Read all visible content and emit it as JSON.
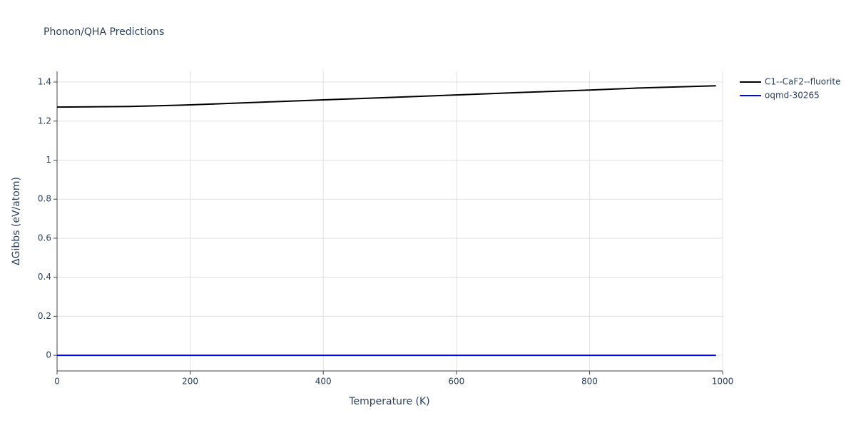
{
  "chart_data": {
    "type": "line",
    "title": "Phonon/QHA Predictions",
    "x_label": "Temperature (K)",
    "y_label": "ΔGibbs (eV/atom)",
    "x": [
      0,
      110,
      200,
      300,
      400,
      500,
      600,
      700,
      800,
      870,
      990
    ],
    "series": [
      {
        "name": "C1--CaF2--fluorite",
        "color": "#000000",
        "values": [
          1.272,
          1.275,
          1.283,
          1.296,
          1.309,
          1.321,
          1.334,
          1.347,
          1.359,
          1.369,
          1.381
        ]
      },
      {
        "name": "oqmd-30265",
        "color": "#0000ff",
        "values": [
          0,
          0,
          0,
          0,
          0,
          0,
          0,
          0,
          0,
          0,
          0
        ]
      }
    ],
    "xlim": [
      0,
      1000
    ],
    "xticks": [
      0,
      200,
      400,
      600,
      800,
      1000
    ],
    "ylim": [
      -0.08,
      1.455
    ],
    "yticks": [
      0,
      0.2,
      0.4,
      0.6,
      0.8,
      1,
      1.2,
      1.4
    ],
    "grid": true,
    "legend": "top-right"
  }
}
